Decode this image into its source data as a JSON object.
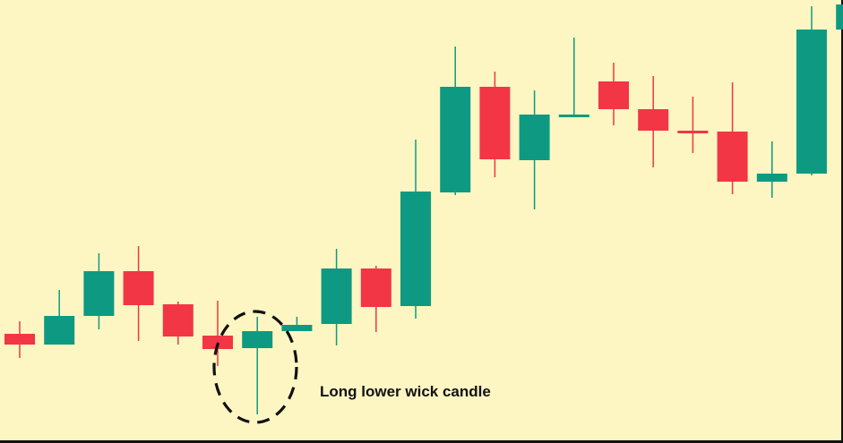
{
  "chart_data": {
    "type": "candlestick",
    "title": "",
    "xlabel": "",
    "ylabel": "",
    "grid": false,
    "colors": {
      "up": "#0e9a82",
      "down": "#f23645",
      "background": "#fdf6c3"
    },
    "candles": [
      {
        "open": 122,
        "close": 110,
        "high": 136,
        "low": 95
      },
      {
        "open": 110,
        "close": 142,
        "high": 171,
        "low": 110
      },
      {
        "open": 142,
        "close": 192,
        "high": 212,
        "low": 127
      },
      {
        "open": 192,
        "close": 154,
        "high": 220,
        "low": 114
      },
      {
        "open": 155,
        "close": 119,
        "high": 158,
        "low": 110
      },
      {
        "open": 120,
        "close": 105,
        "high": 159,
        "low": 86
      },
      {
        "open": 106,
        "close": 125,
        "high": 141,
        "low": 32
      },
      {
        "open": 125,
        "close": 132,
        "high": 141,
        "low": 125
      },
      {
        "open": 133,
        "close": 195,
        "high": 217,
        "low": 109
      },
      {
        "open": 195,
        "close": 152,
        "high": 198,
        "low": 124
      },
      {
        "open": 153,
        "close": 281,
        "high": 339,
        "low": 139
      },
      {
        "open": 280,
        "close": 398,
        "high": 443,
        "low": 277
      },
      {
        "open": 398,
        "close": 317,
        "high": 415,
        "low": 297
      },
      {
        "open": 316,
        "close": 367,
        "high": 394,
        "low": 261
      },
      {
        "open": 367,
        "close": 367,
        "high": 453,
        "low": 367
      },
      {
        "open": 404,
        "close": 373,
        "high": 425,
        "low": 355
      },
      {
        "open": 373,
        "close": 349,
        "high": 410,
        "low": 308
      },
      {
        "open": 349,
        "close": 348,
        "high": 387,
        "low": 324
      },
      {
        "open": 348,
        "close": 292,
        "high": 403,
        "low": 278
      },
      {
        "open": 292,
        "close": 301,
        "high": 337,
        "low": 274
      },
      {
        "open": 301,
        "close": 462,
        "high": 488,
        "low": 299
      },
      {
        "open": 462,
        "close": 490,
        "high": 505,
        "low": 462
      }
    ],
    "annotations": [
      {
        "text": "Long lower wick candle",
        "candle_index": 6,
        "marker": "dashed-ellipse"
      }
    ]
  }
}
